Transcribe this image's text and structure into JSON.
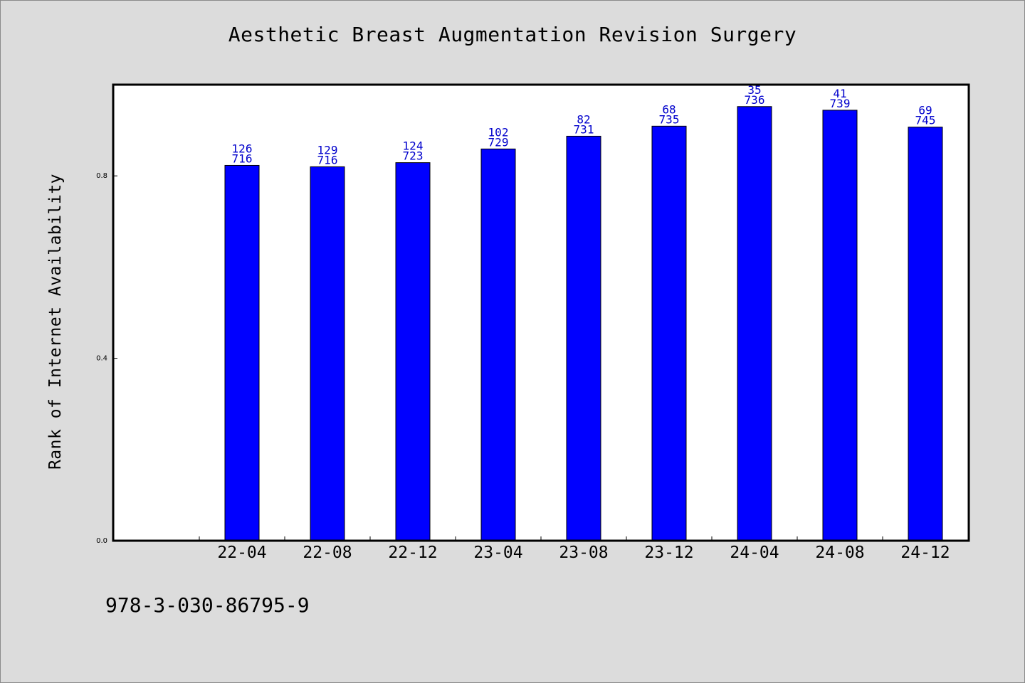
{
  "chart_data": {
    "type": "bar",
    "title": "Aesthetic Breast Augmentation Revision Surgery",
    "xlabel": "",
    "ylabel": "Rank of Internet Availability",
    "categories": [
      "22-04",
      "22-08",
      "22-12",
      "23-04",
      "23-08",
      "23-12",
      "24-04",
      "24-08",
      "24-12"
    ],
    "values": [
      0.823,
      0.82,
      0.829,
      0.859,
      0.887,
      0.909,
      0.952,
      0.944,
      0.907
    ],
    "data_labels": [
      [
        "126",
        "716"
      ],
      [
        "129",
        "716"
      ],
      [
        "124",
        "723"
      ],
      [
        "102",
        "729"
      ],
      [
        "82",
        "731"
      ],
      [
        "68",
        "735"
      ],
      [
        "35",
        "736"
      ],
      [
        "41",
        "739"
      ],
      [
        "69",
        "745"
      ]
    ],
    "yticks": [
      "0.0",
      "0.4",
      "0.8"
    ],
    "ylim": [
      0,
      1.0
    ],
    "grid": false,
    "legend": "none",
    "colors": {
      "bar": "#0000ff",
      "data_label": "#0000cc",
      "background": "#dcdcdc",
      "plot_area": "#ffffff"
    }
  },
  "footer": {
    "code": "978-3-030-86795-9"
  }
}
